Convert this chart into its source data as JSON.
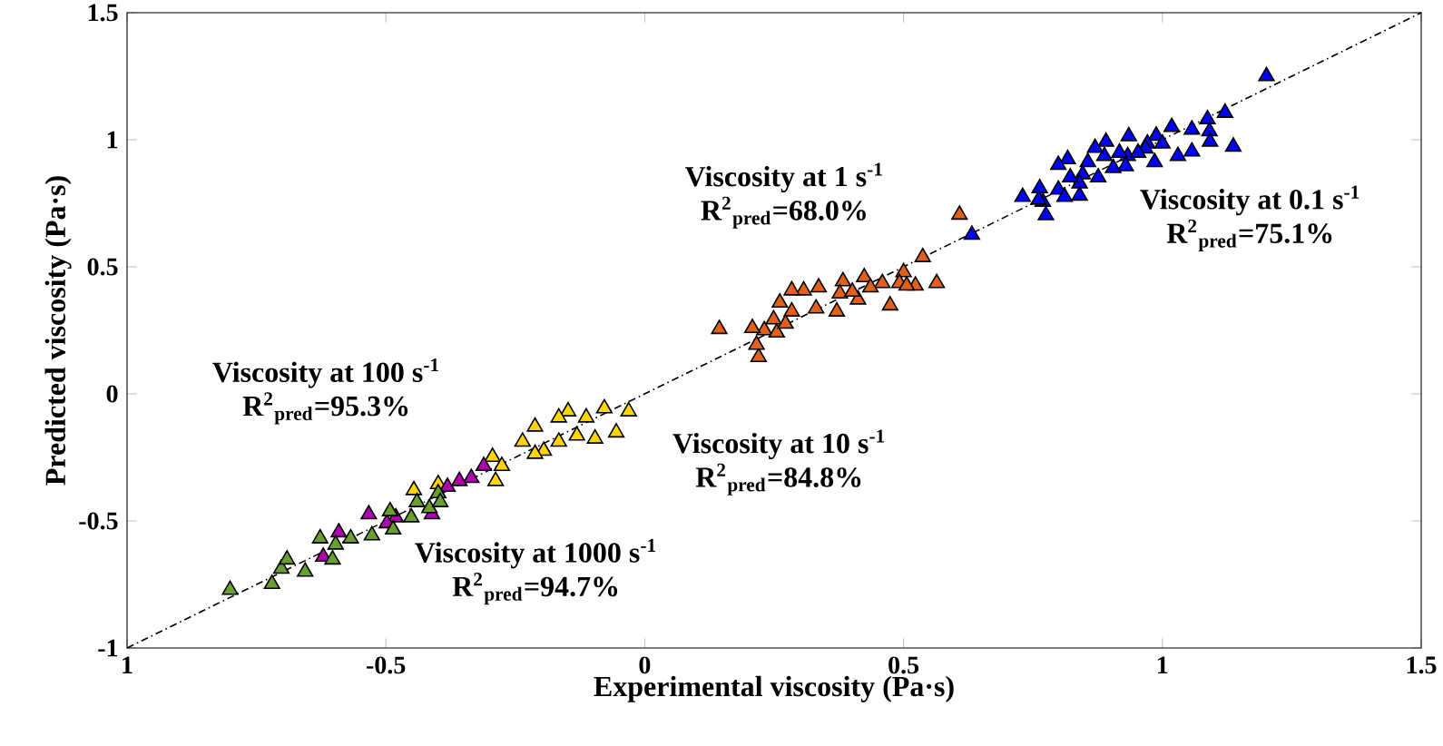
{
  "chart_data": {
    "type": "scatter",
    "xlabel": "Experimental viscosity (Pa·s)",
    "ylabel": "Predicted viscosity (Pa·s)",
    "marker": "triangle",
    "xlim": [
      -1,
      1.5
    ],
    "ylim": [
      -1,
      1.5
    ],
    "xticks": [
      {
        "value": -1,
        "label": "1"
      },
      -0.5,
      0,
      0.5,
      1,
      1.5
    ],
    "yticks": [
      -1,
      -0.5,
      0,
      0.5,
      1,
      1.5
    ],
    "series": [
      {
        "name": "Viscosity at 0.1 s$^{-1}$",
        "color": "#0000ff",
        "x": [
          1.201,
          1.121,
          1.087,
          1.091,
          1.092,
          1.137,
          1.057,
          1.057,
          1.03,
          1.018,
          0.988,
          0.985,
          0.971,
          0.967,
          0.935,
          0.933,
          0.917,
          0.929,
          0.891,
          0.888,
          0.87,
          0.856,
          0.876,
          0.846,
          0.84,
          0.822,
          0.817,
          0.799,
          0.799,
          0.811,
          0.763,
          0.769,
          0.73,
          0.775,
          0.84,
          0.953,
          1.0,
          0.905,
          0.632,
          0.761
        ],
        "values": [
          1.25,
          1.106,
          1.081,
          1.033,
          0.992,
          0.973,
          1.04,
          0.954,
          0.936,
          1.05,
          1.016,
          0.912,
          0.985,
          0.966,
          1.014,
          0.936,
          0.949,
          0.896,
          0.992,
          0.936,
          0.968,
          0.912,
          0.852,
          0.864,
          0.828,
          0.852,
          0.924,
          0.901,
          0.804,
          0.775,
          0.809,
          0.756,
          0.775,
          0.703,
          0.78,
          0.949,
          0.985,
          0.889,
          0.626,
          0.764
        ]
      },
      {
        "name": "Viscosity at 1 s$^{-1}$",
        "color": "#e0601c",
        "x": [
          0.608,
          0.537,
          0.564,
          0.523,
          0.5,
          0.492,
          0.474,
          0.459,
          0.424,
          0.412,
          0.383,
          0.377,
          0.371,
          0.336,
          0.331,
          0.307,
          0.284,
          0.284,
          0.261,
          0.249,
          0.231,
          0.208,
          0.22,
          0.216,
          0.255,
          0.272,
          0.144,
          0.401,
          0.436,
          0.506
        ],
        "values": [
          0.705,
          0.538,
          0.436,
          0.426,
          0.479,
          0.436,
          0.348,
          0.436,
          0.459,
          0.371,
          0.443,
          0.395,
          0.324,
          0.419,
          0.336,
          0.407,
          0.407,
          0.324,
          0.359,
          0.293,
          0.25,
          0.259,
          0.145,
          0.193,
          0.241,
          0.276,
          0.255,
          0.402,
          0.419,
          0.426
        ]
      },
      {
        "name": "Viscosity at 10 s$^{-1}$",
        "color": "#ffd400",
        "x": [
          -0.031,
          -0.055,
          -0.078,
          -0.096,
          -0.113,
          -0.131,
          -0.148,
          -0.166,
          -0.166,
          -0.195,
          -0.212,
          -0.212,
          -0.236,
          -0.294,
          -0.288,
          -0.446,
          -0.399,
          -0.276
        ],
        "values": [
          -0.069,
          -0.152,
          -0.057,
          -0.176,
          -0.093,
          -0.164,
          -0.069,
          -0.188,
          -0.093,
          -0.224,
          -0.236,
          -0.129,
          -0.188,
          -0.248,
          -0.343,
          -0.379,
          -0.355,
          -0.284
        ]
      },
      {
        "name": "Viscosity at 100 s$^{-1}$",
        "color": "#b000b0",
        "x": [
          -0.311,
          -0.335,
          -0.358,
          -0.381,
          -0.411,
          -0.481,
          -0.533,
          -0.591,
          -0.621,
          -0.498
        ],
        "values": [
          -0.284,
          -0.331,
          -0.343,
          -0.366,
          -0.474,
          -0.486,
          -0.474,
          -0.545,
          -0.641,
          -0.509
        ]
      },
      {
        "name": "Viscosity at 1000 s$^{-1}$",
        "color": "#6a9e2e",
        "x": [
          -0.801,
          -0.72,
          -0.702,
          -0.691,
          -0.656,
          -0.627,
          -0.603,
          -0.568,
          -0.527,
          -0.492,
          -0.486,
          -0.451,
          -0.44,
          -0.416,
          -0.399,
          -0.395,
          -0.597
        ],
        "values": [
          -0.771,
          -0.748,
          -0.688,
          -0.652,
          -0.7,
          -0.569,
          -0.652,
          -0.569,
          -0.557,
          -0.462,
          -0.534,
          -0.486,
          -0.426,
          -0.45,
          -0.391,
          -0.426,
          -0.593
        ]
      },
      {
        "type": "line",
        "color": "#000000",
        "line_style": "dashed",
        "marker": "none",
        "x": [
          -1,
          1.5
        ],
        "values": [
          -1,
          1.5
        ]
      }
    ],
    "annotations": [
      "R$^{2}$$_{pred}$=75.1%",
      "R$^{2}$$_{pred}$=68.0%",
      "R$^{2}$$_{pred}$=84.8%",
      "R$^{2}$$_{pred}$=95.3%",
      "R$^{2}$$_{pred}$=94.7%"
    ]
  }
}
